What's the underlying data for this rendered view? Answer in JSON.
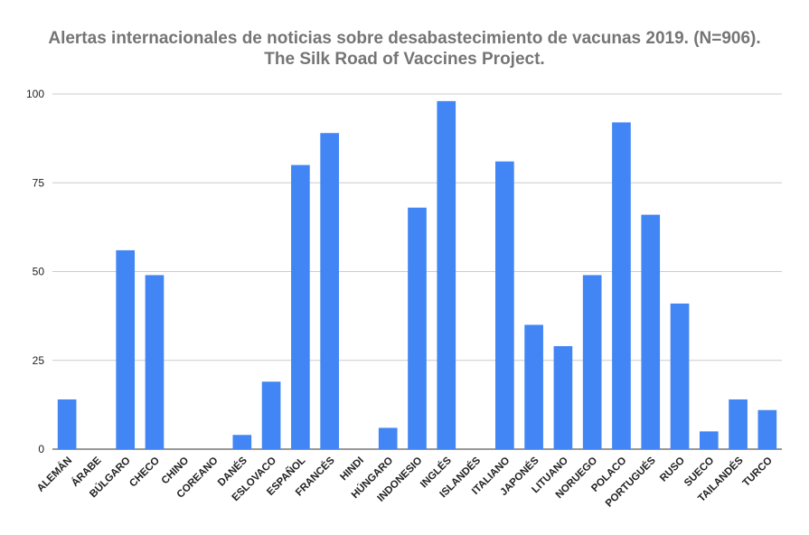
{
  "chart_data": {
    "type": "bar",
    "title": "Alertas internacionales de noticias sobre desabastecimiento de vacunas 2019. (N=906).",
    "subtitle": "The Silk Road of Vaccines Project.",
    "xlabel": "",
    "ylabel": "",
    "ylim": [
      0,
      100
    ],
    "yticks": [
      "0",
      "25",
      "50",
      "75",
      "100"
    ],
    "grid": true,
    "legend": "none",
    "bar_color": "#4285f4",
    "categories": [
      "ALEMÁN",
      "ÁRABE",
      "BÚLGARO",
      "CHECO",
      "CHINO",
      "COREANO",
      "DANÉS",
      "ESLOVACO",
      "ESPAÑOL",
      "FRANCÉS",
      "HINDI",
      "HÚNGARO",
      "INDONESIO",
      "INGLÉS",
      "ISLANDÉS",
      "ITALIANO",
      "JAPONÉS",
      "LITUANO",
      "NORUEGO",
      "POLACO",
      "PORTUGUÉS",
      "RUSO",
      "SUECO",
      "TAILANDÉS",
      "TURCO"
    ],
    "values": [
      14,
      0,
      56,
      49,
      0,
      0,
      4,
      19,
      80,
      89,
      0,
      6,
      68,
      98,
      0,
      81,
      35,
      29,
      49,
      92,
      66,
      41,
      5,
      14,
      11
    ]
  }
}
